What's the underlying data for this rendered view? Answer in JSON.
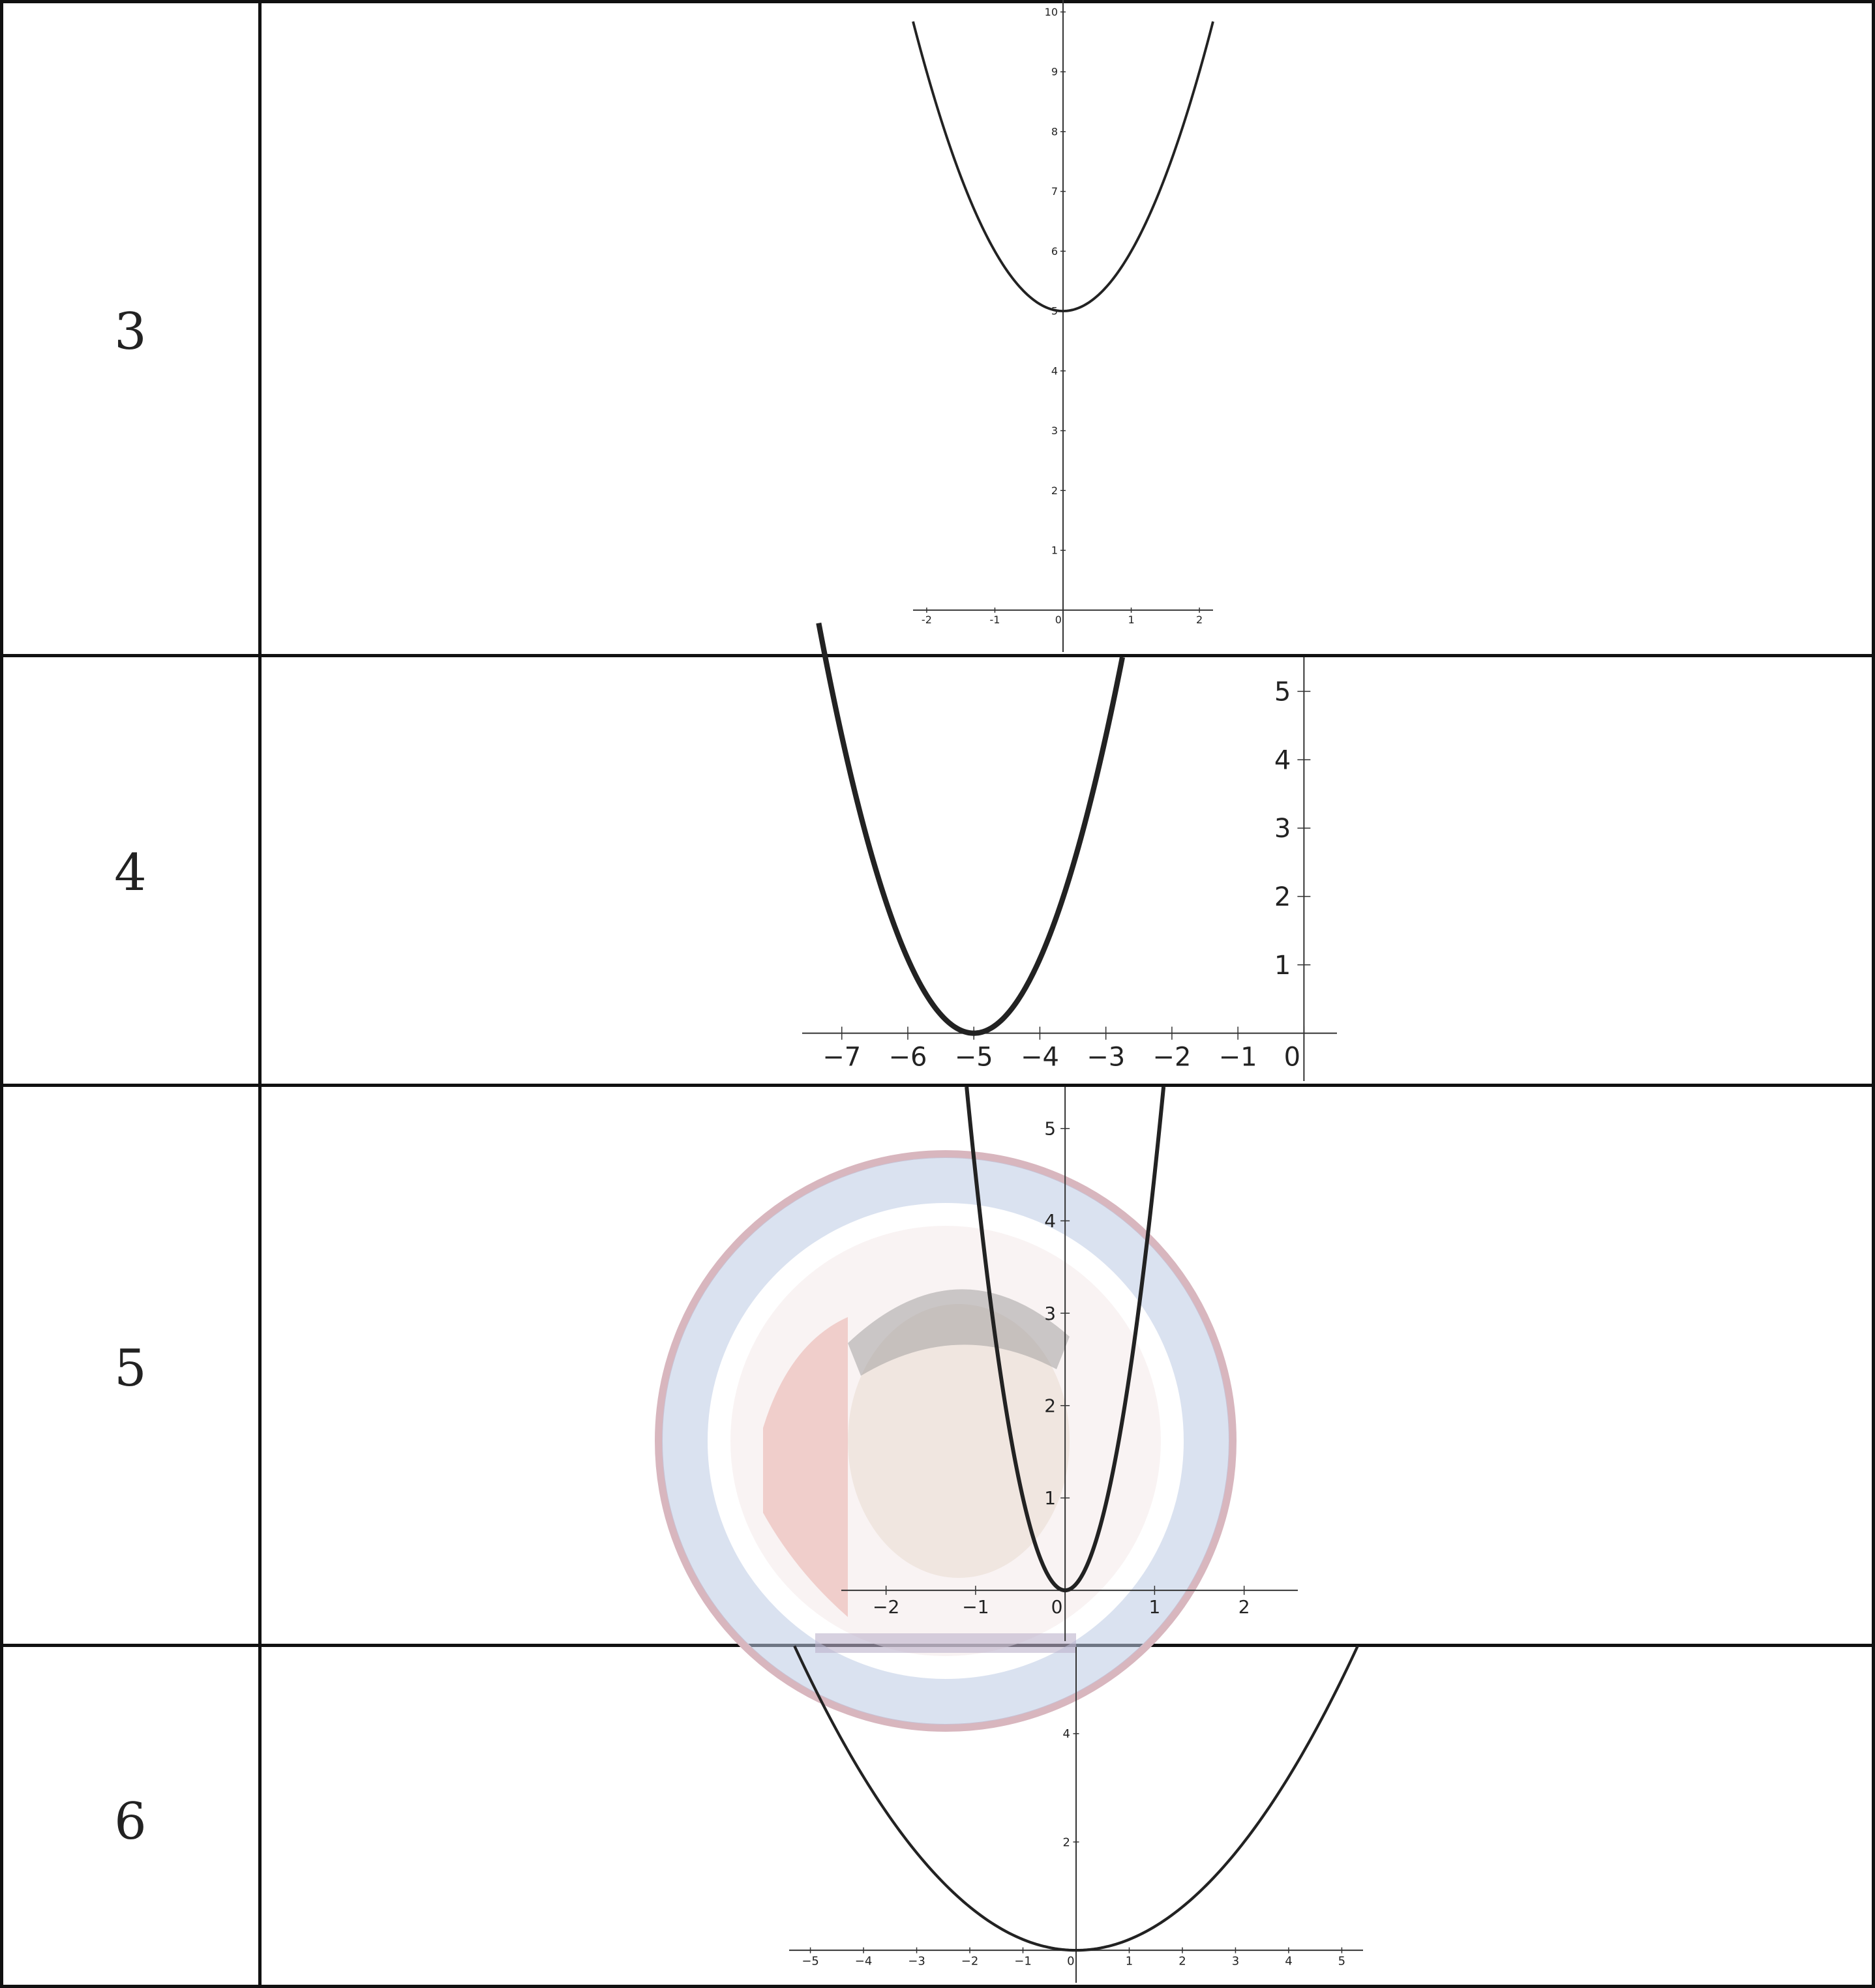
{
  "rows": [
    {
      "number": "3"
    },
    {
      "number": "4"
    },
    {
      "number": "5"
    },
    {
      "number": "6"
    }
  ],
  "colors": {
    "curve": "#222222",
    "axis": "#333333",
    "grid_line": "#111111"
  },
  "watermark": {
    "kind": "circular seal with portrait",
    "colors": [
      "#c9a6b0",
      "#9fb4d6"
    ]
  },
  "chart_data": [
    {
      "type": "line",
      "row": "3",
      "title": "",
      "xlabel": "",
      "ylabel": "",
      "xlim": [
        -2.2,
        2.2
      ],
      "ylim": [
        -0.7,
        10.2
      ],
      "xticks": [
        "-2",
        "-1",
        "0",
        "1",
        "2"
      ],
      "yticks": [
        "1",
        "2",
        "3",
        "4",
        "5",
        "6",
        "7",
        "8",
        "9",
        "10"
      ],
      "grid": false,
      "series": [
        {
          "x": [
            -2.2,
            -1.5,
            -1,
            -0.5,
            0,
            0.5,
            1,
            1.5,
            2.2
          ],
          "y": [
            9.84,
            7.25,
            6,
            5.25,
            5,
            5.25,
            6,
            7.25,
            9.84
          ]
        }
      ]
    },
    {
      "type": "line",
      "row": "4",
      "title": "",
      "xlabel": "",
      "ylabel": "",
      "xlim": [
        -7.6,
        0.5
      ],
      "ylim": [
        -0.7,
        5.5
      ],
      "xticks": [
        "−7",
        "−6",
        "−5",
        "−4",
        "−3",
        "−2",
        "−1",
        "0"
      ],
      "yticks": [
        "1",
        "2",
        "3",
        "4",
        "5"
      ],
      "grid": false,
      "series": [
        {
          "x": [
            -7.35,
            -6.5,
            -6,
            -5.5,
            -5,
            -4.5,
            -4,
            -3.5,
            -2.75
          ],
          "y": [
            5.5,
            2.25,
            1,
            0.25,
            0,
            0.25,
            1,
            2.25,
            5.5
          ]
        }
      ]
    },
    {
      "type": "line",
      "row": "5",
      "title": "",
      "xlabel": "",
      "ylabel": "",
      "xlim": [
        -2.5,
        2.6
      ],
      "ylim": [
        -0.55,
        5.45
      ],
      "xticks": [
        "−2",
        "−1",
        "0",
        "1",
        "2"
      ],
      "yticks": [
        "1",
        "2",
        "3",
        "4",
        "5"
      ],
      "grid": false,
      "series": [
        {
          "x": [
            -1.1,
            -0.8,
            -0.5,
            -0.25,
            0,
            0.25,
            0.5,
            0.8,
            1.1
          ],
          "y": [
            5.45,
            2.88,
            1.13,
            0.28,
            0,
            0.28,
            1.13,
            2.88,
            5.45
          ]
        }
      ]
    },
    {
      "type": "line",
      "row": "6",
      "title": "",
      "xlabel": "",
      "ylabel": "",
      "xlim": [
        -5.4,
        5.4
      ],
      "ylim": [
        -0.6,
        5.6
      ],
      "xticks": [
        "−5",
        "−4",
        "−3",
        "−2",
        "−1",
        "0",
        "1",
        "2",
        "3",
        "4",
        "5"
      ],
      "yticks": [
        "2",
        "4"
      ],
      "grid": false,
      "series": [
        {
          "x": [
            -5.3,
            -4,
            -3,
            -2,
            -1,
            0,
            1,
            2,
            3,
            4,
            5.3
          ],
          "y": [
            5.62,
            3.2,
            1.8,
            0.8,
            0.2,
            0,
            0.2,
            0.8,
            1.8,
            3.2,
            5.62
          ]
        }
      ]
    }
  ]
}
